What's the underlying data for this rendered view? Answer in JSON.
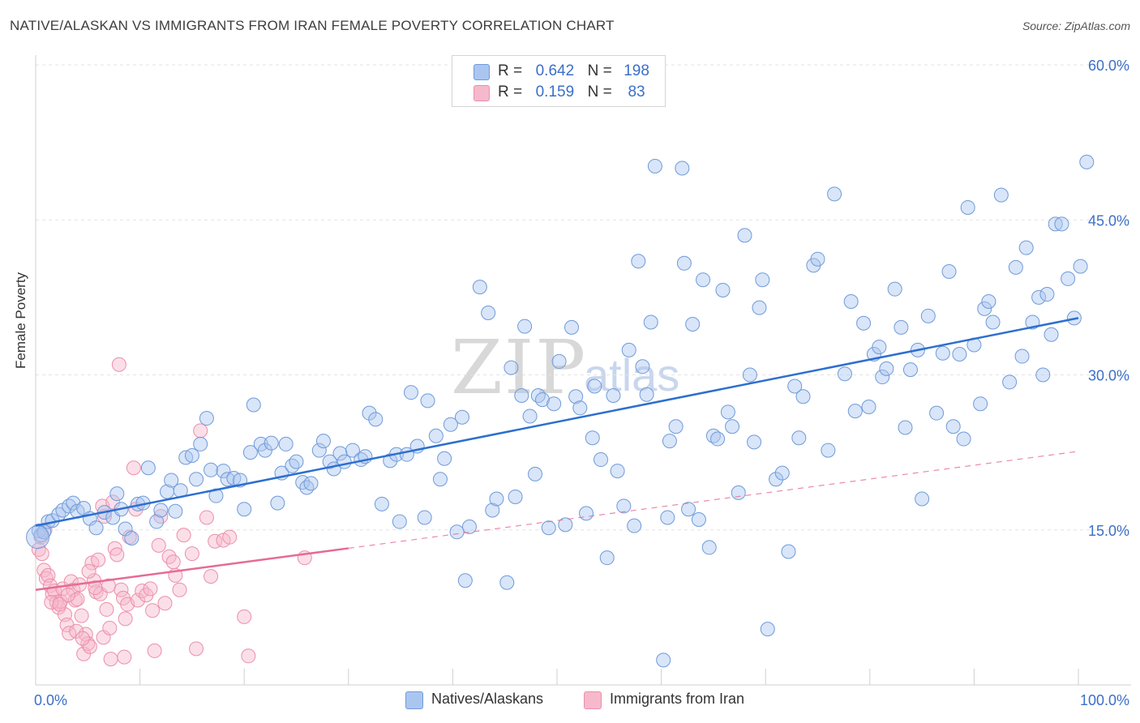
{
  "title": "NATIVE/ALASKAN VS IMMIGRANTS FROM IRAN FEMALE POVERTY CORRELATION CHART",
  "source": "Source: ZipAtlas.com",
  "watermark": {
    "main": "ZIP",
    "sub": "atlas"
  },
  "legend": {
    "r_label": "R =",
    "n_label": "N =",
    "series": [
      {
        "r": "0.642",
        "n": "198"
      },
      {
        "r": "0.159",
        "n": "83"
      }
    ]
  },
  "colors": {
    "blue_fill": "#aac6f0",
    "blue_stroke": "#6f9bd9",
    "blue_line": "#2d6fcf",
    "pink_fill": "#f6b9cc",
    "pink_stroke": "#ec8fab",
    "pink_line": "#e56b95",
    "axis_text": "#3b6fc8"
  },
  "chart_data": {
    "type": "scatter",
    "title": "NATIVE/ALASKAN VS IMMIGRANTS FROM IRAN FEMALE POVERTY CORRELATION CHART",
    "xlabel": "",
    "ylabel": "Female Poverty",
    "xlim": [
      0,
      100
    ],
    "ylim": [
      0,
      60
    ],
    "x_tick_labels": [
      "0.0%",
      "100.0%"
    ],
    "y_ticks": [
      15,
      30,
      45,
      60
    ],
    "y_tick_labels": [
      "15.0%",
      "30.0%",
      "45.0%",
      "60.0%"
    ],
    "series": [
      {
        "name": "Natives/Alaskans",
        "color": "#aac6f0",
        "r": 0.642,
        "n": 198,
        "trend": {
          "x": [
            0,
            100
          ],
          "y": [
            15.4,
            35.5
          ],
          "dashed_from": null
        },
        "points": [
          [
            0.3,
            14.9
          ],
          [
            0.5,
            14.5
          ],
          [
            0.8,
            14.8
          ],
          [
            1.2,
            15.8
          ],
          [
            1.6,
            15.9
          ],
          [
            2.2,
            16.5
          ],
          [
            2.6,
            16.9
          ],
          [
            3.2,
            17.3
          ],
          [
            3.6,
            17.6
          ],
          [
            4.0,
            16.8
          ],
          [
            4.6,
            17.1
          ],
          [
            5.2,
            16.1
          ],
          [
            5.8,
            15.2
          ],
          [
            6.6,
            16.7
          ],
          [
            7.4,
            16.2
          ],
          [
            7.8,
            18.5
          ],
          [
            8.2,
            17.0
          ],
          [
            8.6,
            15.1
          ],
          [
            9.2,
            14.2
          ],
          [
            9.8,
            17.5
          ],
          [
            10.3,
            17.6
          ],
          [
            10.8,
            21.0
          ],
          [
            11.6,
            15.8
          ],
          [
            12.0,
            16.9
          ],
          [
            12.6,
            18.7
          ],
          [
            13.0,
            19.8
          ],
          [
            13.4,
            16.8
          ],
          [
            13.9,
            18.8
          ],
          [
            14.4,
            22.0
          ],
          [
            15.0,
            22.2
          ],
          [
            15.4,
            19.9
          ],
          [
            15.8,
            23.3
          ],
          [
            16.4,
            25.8
          ],
          [
            16.8,
            20.8
          ],
          [
            17.3,
            18.3
          ],
          [
            18.0,
            20.7
          ],
          [
            18.4,
            19.9
          ],
          [
            19.0,
            20.0
          ],
          [
            19.6,
            19.8
          ],
          [
            20.0,
            17.0
          ],
          [
            20.6,
            22.5
          ],
          [
            20.9,
            27.1
          ],
          [
            21.6,
            23.3
          ],
          [
            22.0,
            22.7
          ],
          [
            22.6,
            23.4
          ],
          [
            23.2,
            17.6
          ],
          [
            23.6,
            20.5
          ],
          [
            24.0,
            23.3
          ],
          [
            24.6,
            21.2
          ],
          [
            25.0,
            21.6
          ],
          [
            25.6,
            19.6
          ],
          [
            26.0,
            19.1
          ],
          [
            26.4,
            19.5
          ],
          [
            27.2,
            22.7
          ],
          [
            27.6,
            23.6
          ],
          [
            28.2,
            21.6
          ],
          [
            28.6,
            20.9
          ],
          [
            29.2,
            22.4
          ],
          [
            29.6,
            21.6
          ],
          [
            30.4,
            22.7
          ],
          [
            31.2,
            21.8
          ],
          [
            31.6,
            22.1
          ],
          [
            32.0,
            26.3
          ],
          [
            32.6,
            25.7
          ],
          [
            33.2,
            17.5
          ],
          [
            34.0,
            21.7
          ],
          [
            34.6,
            22.3
          ],
          [
            34.9,
            15.8
          ],
          [
            35.6,
            22.3
          ],
          [
            36.0,
            28.3
          ],
          [
            36.6,
            23.1
          ],
          [
            37.3,
            16.2
          ],
          [
            37.6,
            27.5
          ],
          [
            38.4,
            24.1
          ],
          [
            38.8,
            19.9
          ],
          [
            39.2,
            21.9
          ],
          [
            39.8,
            25.2
          ],
          [
            40.4,
            14.8
          ],
          [
            40.9,
            25.9
          ],
          [
            41.2,
            10.1
          ],
          [
            41.6,
            15.3
          ],
          [
            42.6,
            38.5
          ],
          [
            43.4,
            36.0
          ],
          [
            43.8,
            16.9
          ],
          [
            44.2,
            18.0
          ],
          [
            45.2,
            9.9
          ],
          [
            45.6,
            30.7
          ],
          [
            46.0,
            18.2
          ],
          [
            46.6,
            28.0
          ],
          [
            46.9,
            34.7
          ],
          [
            47.4,
            26.0
          ],
          [
            47.9,
            20.4
          ],
          [
            48.2,
            28.0
          ],
          [
            48.6,
            27.6
          ],
          [
            49.2,
            15.2
          ],
          [
            49.7,
            27.2
          ],
          [
            50.2,
            31.3
          ],
          [
            50.8,
            15.5
          ],
          [
            51.4,
            34.6
          ],
          [
            51.8,
            27.9
          ],
          [
            52.2,
            26.8
          ],
          [
            52.8,
            16.6
          ],
          [
            53.4,
            23.9
          ],
          [
            53.6,
            28.9
          ],
          [
            54.2,
            21.8
          ],
          [
            54.8,
            12.3
          ],
          [
            55.4,
            28.0
          ],
          [
            55.8,
            20.7
          ],
          [
            56.4,
            17.3
          ],
          [
            56.9,
            32.4
          ],
          [
            57.4,
            15.4
          ],
          [
            57.8,
            41.0
          ],
          [
            58.2,
            30.8
          ],
          [
            58.6,
            28.1
          ],
          [
            59.0,
            35.1
          ],
          [
            59.4,
            50.2
          ],
          [
            60.2,
            2.4
          ],
          [
            60.6,
            16.2
          ],
          [
            60.8,
            23.6
          ],
          [
            61.4,
            25.0
          ],
          [
            62.0,
            50.0
          ],
          [
            62.2,
            40.8
          ],
          [
            62.6,
            17.0
          ],
          [
            63.0,
            34.9
          ],
          [
            63.6,
            16.0
          ],
          [
            64.0,
            39.2
          ],
          [
            64.6,
            13.3
          ],
          [
            65.0,
            24.1
          ],
          [
            65.4,
            23.8
          ],
          [
            65.9,
            38.2
          ],
          [
            66.4,
            26.4
          ],
          [
            66.8,
            25.0
          ],
          [
            67.4,
            18.6
          ],
          [
            68.0,
            43.5
          ],
          [
            68.5,
            30.0
          ],
          [
            68.9,
            23.5
          ],
          [
            69.4,
            36.5
          ],
          [
            69.7,
            39.2
          ],
          [
            70.2,
            5.4
          ],
          [
            71.0,
            19.9
          ],
          [
            71.6,
            20.5
          ],
          [
            72.2,
            12.9
          ],
          [
            72.8,
            28.9
          ],
          [
            73.2,
            23.9
          ],
          [
            73.6,
            27.9
          ],
          [
            74.6,
            40.6
          ],
          [
            75.0,
            41.2
          ],
          [
            76.0,
            22.7
          ],
          [
            76.6,
            47.5
          ],
          [
            77.6,
            30.1
          ],
          [
            78.2,
            37.1
          ],
          [
            78.6,
            26.5
          ],
          [
            79.4,
            35.0
          ],
          [
            79.9,
            26.9
          ],
          [
            80.4,
            32.0
          ],
          [
            80.9,
            32.7
          ],
          [
            81.2,
            29.8
          ],
          [
            81.6,
            30.6
          ],
          [
            82.4,
            38.3
          ],
          [
            83.0,
            34.6
          ],
          [
            83.4,
            24.9
          ],
          [
            83.9,
            30.5
          ],
          [
            84.6,
            32.4
          ],
          [
            85.0,
            18.0
          ],
          [
            85.6,
            35.7
          ],
          [
            86.4,
            26.3
          ],
          [
            87.0,
            32.1
          ],
          [
            87.6,
            40.0
          ],
          [
            88.0,
            25.0
          ],
          [
            88.6,
            32.0
          ],
          [
            89.0,
            23.8
          ],
          [
            89.4,
            46.2
          ],
          [
            90.0,
            32.9
          ],
          [
            90.6,
            27.2
          ],
          [
            91.0,
            36.4
          ],
          [
            91.4,
            37.1
          ],
          [
            91.8,
            35.1
          ],
          [
            92.6,
            47.4
          ],
          [
            93.4,
            29.3
          ],
          [
            94.0,
            40.4
          ],
          [
            94.6,
            31.8
          ],
          [
            95.0,
            42.3
          ],
          [
            95.6,
            35.1
          ],
          [
            96.2,
            37.5
          ],
          [
            96.6,
            30.0
          ],
          [
            97.0,
            37.8
          ],
          [
            97.4,
            33.9
          ],
          [
            97.8,
            44.6
          ],
          [
            98.4,
            44.6
          ],
          [
            99.0,
            39.3
          ],
          [
            99.6,
            35.5
          ],
          [
            100.2,
            40.5
          ],
          [
            100.8,
            50.6
          ]
        ]
      },
      {
        "name": "Immigrants from Iran",
        "color": "#f6b9cc",
        "r": 0.159,
        "n": 83,
        "trend": {
          "x": [
            0,
            100
          ],
          "y": [
            9.2,
            22.6
          ],
          "dashed_from": 30
        },
        "points": [
          [
            0.3,
            13.1
          ],
          [
            0.5,
            14.3
          ],
          [
            0.6,
            12.7
          ],
          [
            0.8,
            11.1
          ],
          [
            1.0,
            10.3
          ],
          [
            1.2,
            10.6
          ],
          [
            1.4,
            9.6
          ],
          [
            1.6,
            8.8
          ],
          [
            1.8,
            9.1
          ],
          [
            2.0,
            8.0
          ],
          [
            2.2,
            7.5
          ],
          [
            2.4,
            8.1
          ],
          [
            2.6,
            9.3
          ],
          [
            2.8,
            6.8
          ],
          [
            3.0,
            5.8
          ],
          [
            3.2,
            5.0
          ],
          [
            3.4,
            10.0
          ],
          [
            3.6,
            9.2
          ],
          [
            3.8,
            8.2
          ],
          [
            4.0,
            8.3
          ],
          [
            4.2,
            9.7
          ],
          [
            4.4,
            6.7
          ],
          [
            4.6,
            3.0
          ],
          [
            4.8,
            4.9
          ],
          [
            5.0,
            4.0
          ],
          [
            5.2,
            3.7
          ],
          [
            5.4,
            11.8
          ],
          [
            5.6,
            10.1
          ],
          [
            5.8,
            9.0
          ],
          [
            6.0,
            12.1
          ],
          [
            6.2,
            8.8
          ],
          [
            6.4,
            17.3
          ],
          [
            6.6,
            16.3
          ],
          [
            6.8,
            7.3
          ],
          [
            7.0,
            9.6
          ],
          [
            7.2,
            2.5
          ],
          [
            7.4,
            17.7
          ],
          [
            7.6,
            13.2
          ],
          [
            7.8,
            12.6
          ],
          [
            8.0,
            31.0
          ],
          [
            8.2,
            9.2
          ],
          [
            8.4,
            8.4
          ],
          [
            8.6,
            6.4
          ],
          [
            8.8,
            7.8
          ],
          [
            9.0,
            14.3
          ],
          [
            9.4,
            21.0
          ],
          [
            9.8,
            8.2
          ],
          [
            10.2,
            9.1
          ],
          [
            10.6,
            8.7
          ],
          [
            11.0,
            9.3
          ],
          [
            11.4,
            3.3
          ],
          [
            11.8,
            13.5
          ],
          [
            12.0,
            16.3
          ],
          [
            12.4,
            7.9
          ],
          [
            12.8,
            12.4
          ],
          [
            13.2,
            11.9
          ],
          [
            13.4,
            10.6
          ],
          [
            13.8,
            9.2
          ],
          [
            14.2,
            14.5
          ],
          [
            15.0,
            12.7
          ],
          [
            15.4,
            3.5
          ],
          [
            15.8,
            24.6
          ],
          [
            16.4,
            16.2
          ],
          [
            16.8,
            10.5
          ],
          [
            17.2,
            13.9
          ],
          [
            18.0,
            14.0
          ],
          [
            18.6,
            14.3
          ],
          [
            20.0,
            6.6
          ],
          [
            20.4,
            2.8
          ],
          [
            25.8,
            12.3
          ],
          [
            0.9,
            15.0
          ],
          [
            1.5,
            8.0
          ],
          [
            2.3,
            7.8
          ],
          [
            3.1,
            8.7
          ],
          [
            3.9,
            5.2
          ],
          [
            4.5,
            4.5
          ],
          [
            5.1,
            11.0
          ],
          [
            5.7,
            9.4
          ],
          [
            6.5,
            4.6
          ],
          [
            7.1,
            5.5
          ],
          [
            8.5,
            2.7
          ],
          [
            9.6,
            17.0
          ],
          [
            11.2,
            7.2
          ]
        ]
      }
    ]
  }
}
